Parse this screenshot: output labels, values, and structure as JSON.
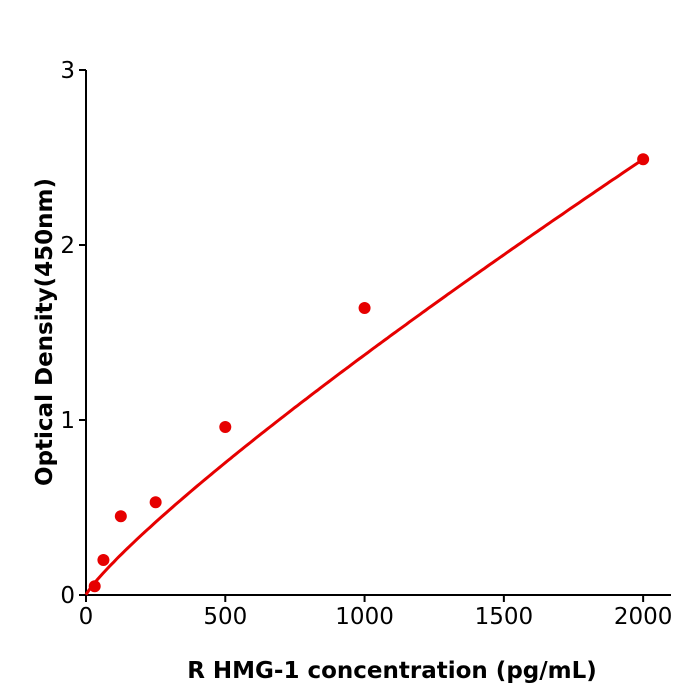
{
  "chart_data": {
    "type": "scatter",
    "xlabel": "R  HMG-1 concentration (pg/mL)",
    "ylabel": "Optical Density(450nm)",
    "xlim": [
      0,
      2100
    ],
    "ylim": [
      0,
      3
    ],
    "xticks": [
      "0",
      "500",
      "1000",
      "1500",
      "2000"
    ],
    "yticks": [
      "0",
      "1",
      "2",
      "3"
    ],
    "grid": false,
    "color": "#e60000",
    "points": [
      {
        "x": 31.25,
        "y": 0.05
      },
      {
        "x": 62.5,
        "y": 0.2
      },
      {
        "x": 125,
        "y": 0.45
      },
      {
        "x": 250,
        "y": 0.53
      },
      {
        "x": 500,
        "y": 0.96
      },
      {
        "x": 1000,
        "y": 1.64
      },
      {
        "x": 2000,
        "y": 2.49
      }
    ],
    "fit": {
      "type": "power curve",
      "x_range": [
        0,
        2000
      ]
    }
  }
}
